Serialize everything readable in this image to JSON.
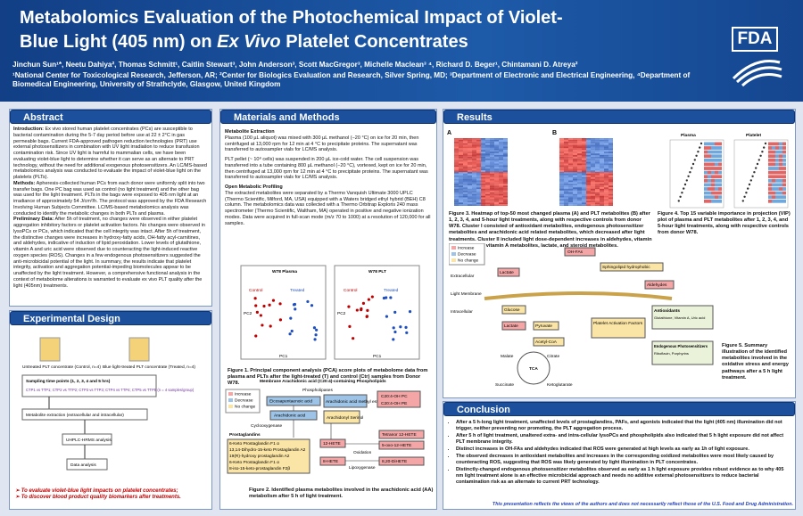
{
  "header": {
    "title_line1": "Metabolomics Evaluation of the Photochemical Impact of Violet-",
    "title_line2_pre": "Blue Light (405 nm) on ",
    "title_line2_em": "Ex Vivo",
    "title_line2_post": " Platelet Concentrates",
    "authors": "Jinchun Sun¹*, Neetu Dahiya², Thomas Schmitt¹, Caitlin Stewart³, John Anderson³, Scott MacGregor³, Michelle Maclean³ ⁴, Richard D. Beger¹, Chintamani D. Atreya²",
    "affiliations": "¹National Center for Toxicological Research, Jefferson, AR; ²Center for Biologics Evaluation and Research, Silver Spring, MD; ³Department of Electronic and Electrical Engineering, ⁴Department of Biomedical Engineering, University of Strathclyde, Glasgow, United Kingdom",
    "logo": "FDA"
  },
  "abstract": {
    "heading": "Abstract",
    "paragraphs": [
      {
        "label": "Introduction:",
        "text": " Ex vivo stored human platelet concentrates (PCs) are susceptible to bacterial contamination during the 5-7 day period before use at 22 ± 2°C in gas permeable bags. Current FDA-approved pathogen reduction technologies (PRT) use external photosensitizers in combination with UV light irradiation to reduce transfusion contamination risk. Since UV light is harmful to mammalian cells, we have been evaluating violet-blue light to determine whether it can serve as an alternate to PRT technology, without the need for additional exogenous photosensitizers. An LC/MS-based metabolomics analysis was conducted to evaluate the impact of violet-blue light on the platelets (PLTs)."
      },
      {
        "label": "Methods:",
        "text": " Apheresis-collected human PCs from each donor were uniformly split into two transfer bags. One PC bag was used as control (no light treatment) and the other bag was used for the light treatment. PLTs in the bags were exposed to 405 nm light at an irradiance of approximately 54 J/cm²/h. The protocol was approved by the FDA Research Involving Human Subjects Committee. LC/MS-based metabolomics analysis was conducted to identify the metabolic changes in both PLTs and plasma."
      },
      {
        "label": "Preliminary Data:",
        "text": " After 5h of treatment, no changes were observed in either platelet aggregation inhibitory factors or platelet activation factors. No changes were observed in lysoPCs or PCs, which indicated that the cell integrity was intact. After 5h of treatment, the distinctive changes were increases in hydroxy-fatty acids, OH-fatty acyl-carnitines, and aldehydes, indicative of induction of lipid peroxidation. Lower levels of glutathione, vitamin A and uric acid were observed due to counteracting the light-induced reactive oxygen species (ROS). Changes in a few endogenous photosensitizers suggested the anti-microbicidal potential of the light. In summary, the results indicate that platelet integrity, activation and aggregation potential-impeding biomolecules appear to be unaffected by the light treatment. However, a comprehensive functional analysis in the context of metabolome alterations is warranted to evaluate ex vivo PLT quality after the light (405nm) treatments."
      }
    ]
  },
  "experimental_design": {
    "heading": "Experimental Design",
    "control": "Untreated PLT concentrate (Control, n=4)",
    "treated": "Blue light-treated PLT concentrate (Treated, n=4)",
    "timepoints": "Sampling time points (1, 2, 3, 4 and 5 hrs)",
    "samples": "CTP1 vs TTP1; CTP2 vs TTP2; CTP3 vs TTP3; CTP4 vs TTP4; CTP5 vs TTP5 (n = 4 samples/group)",
    "extraction": "Metabolite extraction (extracellular and intracellular)",
    "uhplc": "UHPLC-HRMS analysis",
    "analysis": "Data analysis",
    "aims": [
      "To evaluate violet-blue light impacts on platelet concentrates;",
      "To discover blood product quality biomarkers after treatments."
    ]
  },
  "methods": {
    "heading": "Materials and Methods",
    "sub1": "Metabolite Extraction",
    "p1": "Plasma (100 µL aliquot) was mixed with 300 µL methanol (−20 °C) on ice for 20 min, then centrifuged at 13,000 rpm for 12 min at 4 °C to precipitate proteins. The supernatant was transferred to autosampler vials for LC/MS analysis.",
    "p2": "PLT pellet (~ 10⁸ cells) was suspended in 200 µL ice-cold water. The cell suspension was transferred into a tube containing 800 µL methanol (−20 °C), vortexed, kept on ice for 20 min, then centrifuged at 13,000 rpm for 12 min at 4 °C to precipitate proteins. The supernatant was transferred to autosampler vials for LC/MS analysis.",
    "sub2": "Open Metabolic Profiling",
    "p3": "The extracted metabolites were separated by a Thermo Vanquish Ultimate 3000 UPLC (Thermo Scientific, Milford, MA, USA) equipped with a Waters bridged ethyl hybrid (BEH) C8 column. The metabolomics data was collected with a Thermo Orbitrap Exploris 240 mass spectrometer (Thermo Scientific, Waltham, MA) operated in positive and negative ionization modes. Data were acquired in full-scan mode (m/z 70 to 1000) at a resolution of 120,000 for all samples.",
    "fig1": {
      "plasma": "W78 Plasma",
      "plt": "W78 PLT",
      "control": "Control",
      "treated": "Treated",
      "pc1": "PC1",
      "pc2": "PC2",
      "caption": "Figure 1. Principal component analysis (PCA) score plots of metabolome data from plasma and PLTs after the light-treated (T) and control (Ctr) samples from Donor W78."
    },
    "fig2": {
      "top": "Membrane Arachidonic acid (C20:4)-containing Phospholipids",
      "phospholipases": "Phospholipases",
      "legend": [
        "Increase",
        "Decrease",
        "No change"
      ],
      "epa": "Eicosapentaenoic acid",
      "aame": "Arachidonic acid methyl ester",
      "ohpc": "C20:4-OH PC",
      "ohpe": "C20:4-OH PE",
      "aa": "Arachidonic acid",
      "serinol": "Arachidonyl Serinol",
      "cox": "Cyclooxygenase",
      "pg": "Prostaglandins",
      "pglist": [
        "6-Keto Prostaglandin F1 α",
        "13,14-Dihydro-15-keto Prostaglandin A2",
        "19(R)-hydroxy prostaglandin A2",
        "6-Keto Prostaglandin F1 α",
        "8-iso-15-keto-prostaglandin F2β"
      ],
      "hete12": "12-HETE",
      "hete8": "8-HETE",
      "tetranor": "Tetranor 12-HETE",
      "oxo": "5-oxo-12-HETE",
      "dihete": "8,20-DiHETE",
      "oxidation": "Oxidation",
      "lox": "Lipoxygenase",
      "caption": "Figure 2. Identified plasma metabolites involved in the arachidonic acid (AA) metabolism after 5 h of light treatment."
    }
  },
  "results": {
    "heading": "Results",
    "panel_a": "A",
    "panel_b": "B",
    "vip_plasma": "Plasma",
    "vip_plt": "Platelet",
    "fig3_caption": "Figure 3. Heatmap of top-50 most changed plasma (A) and PLT metabolites (B) after 1, 2, 3, 4, and 5-hour light treatments, along with respective controls from donor W78. Cluster I consisted of antioxidant metabolites, endogenous photosensitizer metabolites and arachidonic acid related metabolites, which decreased after light treatments. Cluster II included light dose-dependent increases in aldehydes, vitamin D and oxidized vitamin A metabolites, lactate, and steroid metabolites.",
    "fig4_caption": "Figure 4. Top 15 variable importance in projection (VIP) plot of plasma and PLT metabolites after 1, 2, 3, 4, and 5-hour light treatments, along with respective controls from donor W78.",
    "fig5": {
      "legend": [
        "Increase",
        "Decrease",
        "No change"
      ],
      "extracellular": "Extracellular",
      "intracellular": "Intracellular",
      "membrane": "Light Membrane",
      "glucose": "Glucose",
      "lactate": "Lactate",
      "pyruvate": "Pyruvate",
      "acetyl": "Acetyl-CoA",
      "tca": "TCA",
      "citrate": "Citrate",
      "malate": "Malate",
      "succinate": "Succinate",
      "kg": "Ketoglutarate",
      "ohfa": "OH-FAs",
      "sphingo": "Sphingolipid hydrophobic",
      "aldehydes": "Aldehydes",
      "plt_factors": "Platelet Activation Factors",
      "antioxidants": "Antioxidants",
      "antioxidant_list": "Glutathione, Vitamin A, Uric acid",
      "photosens": "Endogenous Photosensitizers",
      "photosens_list": "Riboflavin, Porphyrins"
    },
    "fig5_caption": "Figure 5. Summary illustration of the identified metabolites involved in the oxidative stress and energy pathways after a 5 h light treatment."
  },
  "conclusion": {
    "heading": "Conclusion",
    "bullets": [
      "After a 5 h-long light treatment, unaffected levels of prostaglandins, PAFs, and agonists indicated that the light (405 nm) illumination did not trigger, neither preventing nor promoting, the PLT aggregation process.",
      "After 5 h of light treatment, unaltered extra- and intra-cellular lysoPCs and phospholipids also indicated that 5 h light exposure did not affect PLT membrane integrity.",
      "Distinct increases in OH-FAs and aldehydes indicated that ROS were generated at high levels as early as 1h of light exposure.",
      "The observed decreases in antioxidant metabolites and increases in the corresponding oxidized metabolites were most likely caused by counteracting ROS, suggesting that ROS was likely generated by light illumination in PLT concentrates.",
      "Distinctly-changed endogenous photosensitizer metabolites observed as early as 1 h light exposure provides robust evidence as to why 405 nm light treatment alone is an effective microbicidal approach and needs no additive external photosensitizers to reduce bacterial contamination risk as an alternate to current PRT technology."
    ],
    "disclaimer": "This presentation reflects the views of the authors and does not necessarily reflect those of the U.S. Food and Drug Administration."
  }
}
